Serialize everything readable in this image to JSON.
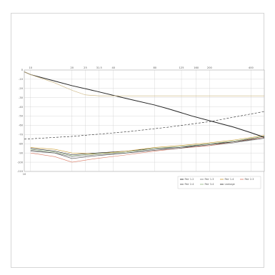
{
  "chart_data": {
    "type": "line",
    "title": "",
    "xlabel": "",
    "ylabel": "",
    "x_scale": "log",
    "xlim": [
      9,
      500
    ],
    "ylim": [
      -110,
      0
    ],
    "grid": true,
    "legend_position": "bottom-right",
    "x_ticks": [
      {
        "value": 10,
        "label": "10"
      },
      {
        "value": 20,
        "label": "20"
      },
      {
        "value": 25,
        "label": "25"
      },
      {
        "value": 31.5,
        "label": "31.5"
      },
      {
        "value": 40,
        "label": "40"
      },
      {
        "value": 80,
        "label": "80"
      },
      {
        "value": 125,
        "label": "125"
      },
      {
        "value": 160,
        "label": "160"
      },
      {
        "value": 200,
        "label": "200"
      },
      {
        "value": 400,
        "label": "400"
      }
    ],
    "y_ticks": [
      {
        "value": 0,
        "label": "0"
      },
      {
        "value": -10,
        "label": "-10"
      },
      {
        "value": -20,
        "label": "-20"
      },
      {
        "value": -30,
        "label": "-30"
      },
      {
        "value": -40,
        "label": "-40"
      },
      {
        "value": -50,
        "label": "-50"
      },
      {
        "value": -60,
        "label": "-60"
      },
      {
        "value": -70,
        "label": "-70"
      },
      {
        "value": -80,
        "label": "-80"
      },
      {
        "value": -90,
        "label": "-90"
      },
      {
        "value": -100,
        "label": "-100"
      },
      {
        "value": -110,
        "label": "-110"
      }
    ],
    "series": [
      {
        "name": "Pair 1-2",
        "color": "#1a1a1a",
        "style": "solid",
        "x": [
          10,
          15,
          20,
          30,
          50,
          80,
          120,
          200,
          300,
          500
        ],
        "y": [
          -85,
          -88,
          -92,
          -90,
          -88,
          -85,
          -84,
          -80,
          -78,
          -72
        ]
      },
      {
        "name": "Pair 1-3",
        "color": "#7a7a7a",
        "style": "solid",
        "x": [
          10,
          15,
          20,
          30,
          50,
          80,
          120,
          200,
          300,
          500
        ],
        "y": [
          -87,
          -90,
          -94,
          -92,
          -90,
          -86,
          -84,
          -82,
          -79,
          -74
        ]
      },
      {
        "name": "Pair 1-4",
        "color": "#c99a2e",
        "style": "solid",
        "x": [
          10,
          15,
          20,
          30,
          50,
          80,
          120,
          200,
          300,
          500
        ],
        "y": [
          -84,
          -86,
          -90,
          -91,
          -88,
          -84,
          -82,
          -79,
          -76,
          -71
        ]
      },
      {
        "name": "Pair 2-3",
        "color": "#d9765f",
        "style": "solid",
        "x": [
          10,
          15,
          20,
          30,
          50,
          80,
          120,
          200,
          300,
          500
        ],
        "y": [
          -90,
          -94,
          -100,
          -96,
          -92,
          -88,
          -85,
          -82,
          -78,
          -73
        ]
      },
      {
        "name": "Pair 2-4",
        "color": "#4a4a4a",
        "style": "solid",
        "x": [
          10,
          15,
          20,
          30,
          50,
          80,
          120,
          200,
          300,
          500
        ],
        "y": [
          -88,
          -90,
          -96,
          -93,
          -90,
          -87,
          -85,
          -81,
          -78,
          -74
        ]
      },
      {
        "name": "Pair 3-4",
        "color": "#8fb27a",
        "style": "solid",
        "x": [
          10,
          15,
          20,
          30,
          50,
          80,
          120,
          200,
          300,
          500
        ],
        "y": [
          -86,
          -89,
          -93,
          -91,
          -89,
          -85,
          -83,
          -80,
          -77,
          -72
        ]
      },
      {
        "name": "Leakage",
        "color": "#222222",
        "style": "solid",
        "x": [
          9,
          10,
          15,
          20,
          30,
          50,
          80,
          100,
          150,
          200,
          300,
          400,
          500
        ],
        "y": [
          -2,
          -5,
          -12,
          -17,
          -23,
          -31,
          -38,
          -42,
          -50,
          -55,
          -62,
          -68,
          -73
        ]
      },
      {
        "name": "",
        "color": "#222222",
        "style": "dashed",
        "x": [
          9,
          20,
          50,
          100,
          200,
          500
        ],
        "y": [
          -75,
          -72,
          -67,
          -62,
          -56,
          -45
        ]
      },
      {
        "name": "",
        "color": "#c9b27a",
        "style": "solid",
        "x": [
          9,
          10,
          15,
          20,
          25,
          31.5,
          50,
          100,
          200,
          500
        ],
        "y": [
          -2,
          -5,
          -14,
          -22,
          -27,
          -28,
          -28,
          -28,
          -28,
          -28
        ]
      }
    ]
  }
}
